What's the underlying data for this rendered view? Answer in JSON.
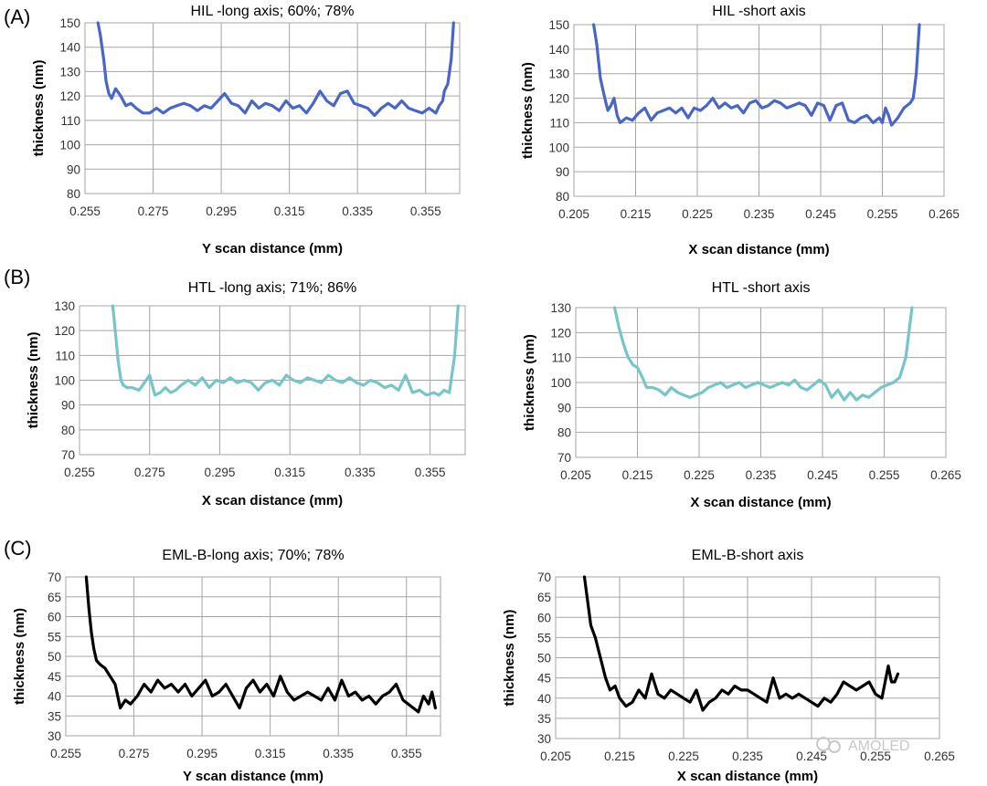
{
  "panel_labels": [
    "(A)",
    "(B)",
    "(C)"
  ],
  "watermark": "AMOLED",
  "chart_data": [
    {
      "type": "line",
      "panel": "(A)",
      "title": "HIL -long axis; 60%; 78%",
      "xlabel": "Y scan distance (mm)",
      "ylabel": "thickness (nm)",
      "xlim": [
        0.255,
        0.365
      ],
      "ylim": [
        80,
        150
      ],
      "xticks": [
        "0.255",
        "0.275",
        "0.295",
        "0.315",
        "0.335",
        "0.355"
      ],
      "yticks": [
        "80",
        "90",
        "100",
        "110",
        "120",
        "130",
        "140",
        "150"
      ],
      "color": "#4a66c4",
      "grid": true,
      "series": [
        {
          "name": "HIL long axis",
          "x": [
            0.2588,
            0.2595,
            0.2605,
            0.2612,
            0.262,
            0.2628,
            0.264,
            0.2655,
            0.267,
            0.2685,
            0.27,
            0.272,
            0.274,
            0.276,
            0.278,
            0.28,
            0.282,
            0.284,
            0.286,
            0.288,
            0.29,
            0.292,
            0.294,
            0.296,
            0.298,
            0.3,
            0.302,
            0.304,
            0.306,
            0.308,
            0.31,
            0.312,
            0.314,
            0.316,
            0.318,
            0.32,
            0.322,
            0.324,
            0.326,
            0.328,
            0.33,
            0.332,
            0.334,
            0.336,
            0.338,
            0.34,
            0.342,
            0.344,
            0.346,
            0.348,
            0.35,
            0.352,
            0.354,
            0.356,
            0.358,
            0.359,
            0.36,
            0.3605,
            0.3615,
            0.3625,
            0.3632
          ],
          "y": [
            150,
            145,
            135,
            126,
            121,
            119,
            123,
            120,
            116,
            117,
            115,
            113,
            113,
            115,
            113,
            115,
            116,
            117,
            116,
            114,
            116,
            115,
            118,
            121,
            117,
            116,
            113,
            118,
            115,
            117,
            116,
            114,
            118,
            115,
            116,
            113,
            117,
            122,
            118,
            116,
            121,
            122,
            117,
            116,
            115,
            112,
            115,
            117,
            115,
            118,
            115,
            114,
            113,
            115,
            113,
            116,
            118,
            122,
            125,
            135,
            150
          ]
        }
      ]
    },
    {
      "type": "line",
      "panel": "(A)",
      "title": "HIL -short axis",
      "xlabel": "X scan distance (mm)",
      "ylabel": "thickness (nm)",
      "xlim": [
        0.205,
        0.265
      ],
      "ylim": [
        80,
        150
      ],
      "xticks": [
        "0.205",
        "0.215",
        "0.225",
        "0.235",
        "0.245",
        "0.255",
        "0.265"
      ],
      "yticks": [
        "80",
        "90",
        "100",
        "110",
        "120",
        "130",
        "140",
        "150"
      ],
      "color": "#4a66c4",
      "grid": true,
      "series": [
        {
          "name": "HIL short axis",
          "x": [
            0.2082,
            0.2087,
            0.2093,
            0.21,
            0.2105,
            0.211,
            0.2115,
            0.212,
            0.2125,
            0.2135,
            0.2145,
            0.2155,
            0.2165,
            0.2175,
            0.2185,
            0.2195,
            0.2205,
            0.2215,
            0.2225,
            0.2235,
            0.2245,
            0.2255,
            0.2265,
            0.2275,
            0.2285,
            0.2295,
            0.2305,
            0.2315,
            0.2325,
            0.2335,
            0.2345,
            0.2355,
            0.2365,
            0.2375,
            0.2385,
            0.2395,
            0.2405,
            0.2415,
            0.2425,
            0.2435,
            0.2445,
            0.2455,
            0.2465,
            0.2475,
            0.2485,
            0.2495,
            0.2505,
            0.2515,
            0.2525,
            0.2535,
            0.2545,
            0.255,
            0.2555,
            0.256,
            0.2565,
            0.2575,
            0.2585,
            0.2595,
            0.26,
            0.2605,
            0.261
          ],
          "y": [
            150,
            142,
            128,
            120,
            115,
            117,
            120,
            113,
            110,
            112,
            111,
            114,
            116,
            111,
            114,
            115,
            116,
            114,
            116,
            112,
            116,
            115,
            117,
            120,
            116,
            118,
            116,
            117,
            114,
            118,
            119,
            116,
            117,
            119,
            118,
            116,
            117,
            118,
            117,
            113,
            118,
            117,
            111,
            117,
            118,
            111,
            110,
            112,
            113,
            110,
            112,
            110,
            116,
            113,
            109,
            112,
            116,
            118,
            120,
            130,
            150
          ]
        }
      ]
    },
    {
      "type": "line",
      "panel": "(B)",
      "title": "HTL -long axis; 71%; 86%",
      "xlabel": "X scan distance (mm)",
      "ylabel": "thickness (nm)",
      "xlim": [
        0.255,
        0.365
      ],
      "ylim": [
        70,
        130
      ],
      "xticks": [
        "0.255",
        "0.275",
        "0.295",
        "0.315",
        "0.335",
        "0.355"
      ],
      "yticks": [
        "70",
        "80",
        "90",
        "100",
        "110",
        "120",
        "130"
      ],
      "color": "#76c5c9",
      "grid": true,
      "series": [
        {
          "name": "HTL long axis",
          "x": [
            0.2645,
            0.2652,
            0.266,
            0.2668,
            0.2675,
            0.2685,
            0.27,
            0.272,
            0.2735,
            0.275,
            0.2765,
            0.278,
            0.2795,
            0.281,
            0.2825,
            0.284,
            0.286,
            0.288,
            0.29,
            0.292,
            0.294,
            0.296,
            0.298,
            0.3,
            0.302,
            0.304,
            0.306,
            0.308,
            0.31,
            0.312,
            0.314,
            0.316,
            0.318,
            0.32,
            0.322,
            0.324,
            0.326,
            0.328,
            0.33,
            0.332,
            0.334,
            0.336,
            0.338,
            0.34,
            0.342,
            0.344,
            0.346,
            0.348,
            0.35,
            0.352,
            0.354,
            0.356,
            0.3575,
            0.359,
            0.3605,
            0.362,
            0.363
          ],
          "y": [
            130,
            120,
            108,
            100,
            98,
            97,
            97,
            96,
            99,
            102,
            94,
            95,
            97,
            95,
            96,
            98,
            100,
            98,
            101,
            97,
            100,
            99,
            101,
            99,
            100,
            99,
            96,
            99,
            100,
            98,
            102,
            100,
            99,
            101,
            100,
            99,
            102,
            100,
            99,
            101,
            99,
            98,
            100,
            99,
            97,
            98,
            96,
            102,
            95,
            96,
            94,
            95,
            94,
            96,
            95,
            110,
            130
          ]
        }
      ]
    },
    {
      "type": "line",
      "panel": "(B)",
      "title": "HTL -short axis",
      "xlabel": "X scan distance (mm)",
      "ylabel": "thickness (nm)",
      "xlim": [
        0.205,
        0.265
      ],
      "ylim": [
        70,
        130
      ],
      "xticks": [
        "0.205",
        "0.215",
        "0.225",
        "0.235",
        "0.245",
        "0.255",
        "0.265"
      ],
      "yticks": [
        "70",
        "80",
        "90",
        "100",
        "110",
        "120",
        "130"
      ],
      "color": "#76c5c9",
      "grid": true,
      "series": [
        {
          "name": "HTL short axis",
          "x": [
            0.2113,
            0.212,
            0.2128,
            0.2135,
            0.2143,
            0.215,
            0.2158,
            0.2165,
            0.2175,
            0.2185,
            0.2195,
            0.2205,
            0.2215,
            0.2225,
            0.2235,
            0.2245,
            0.2255,
            0.2265,
            0.2275,
            0.2285,
            0.2295,
            0.2305,
            0.2315,
            0.2325,
            0.2335,
            0.2345,
            0.2355,
            0.2365,
            0.2375,
            0.2385,
            0.2395,
            0.2405,
            0.2415,
            0.2425,
            0.2435,
            0.2445,
            0.2455,
            0.2465,
            0.2475,
            0.2485,
            0.2495,
            0.2505,
            0.2515,
            0.2525,
            0.2535,
            0.2545,
            0.2555,
            0.2565,
            0.2575,
            0.2585,
            0.2595
          ],
          "y": [
            130,
            122,
            115,
            110,
            107,
            106,
            102,
            98,
            98,
            97,
            95,
            98,
            96,
            95,
            94,
            95,
            96,
            98,
            99,
            100,
            98,
            99,
            100,
            98,
            99,
            100,
            99,
            98,
            99,
            100,
            99,
            101,
            98,
            97,
            99,
            101,
            99,
            94,
            97,
            93,
            96,
            93,
            95,
            94,
            96,
            98,
            99,
            100,
            102,
            110,
            130
          ]
        }
      ]
    },
    {
      "type": "line",
      "panel": "(C)",
      "title": "EML-B-long axis; 70%; 78%",
      "xlabel": "Y scan distance (mm)",
      "ylabel": "thickness (nm)",
      "xlim": [
        0.255,
        0.365
      ],
      "ylim": [
        30,
        70
      ],
      "xticks": [
        "0.255",
        "0.275",
        "0.295",
        "0.315",
        "0.335",
        "0.355"
      ],
      "yticks": [
        "30",
        "35",
        "40",
        "45",
        "50",
        "55",
        "60",
        "65",
        "70"
      ],
      "color": "#000000",
      "grid": true,
      "series": [
        {
          "name": "EML-B long axis",
          "x": [
            0.261,
            0.2618,
            0.2625,
            0.2632,
            0.264,
            0.265,
            0.2665,
            0.268,
            0.2695,
            0.271,
            0.2725,
            0.274,
            0.276,
            0.278,
            0.28,
            0.282,
            0.284,
            0.286,
            0.288,
            0.29,
            0.292,
            0.294,
            0.296,
            0.298,
            0.3,
            0.302,
            0.304,
            0.306,
            0.308,
            0.31,
            0.312,
            0.314,
            0.316,
            0.318,
            0.32,
            0.322,
            0.324,
            0.326,
            0.328,
            0.33,
            0.332,
            0.334,
            0.336,
            0.338,
            0.34,
            0.342,
            0.344,
            0.346,
            0.348,
            0.35,
            0.352,
            0.354,
            0.3555,
            0.357,
            0.3585,
            0.36,
            0.3615,
            0.3625,
            0.3635
          ],
          "y": [
            70,
            62,
            56,
            52,
            49,
            48,
            47,
            45,
            43,
            37,
            39,
            38,
            40,
            43,
            41,
            44,
            42,
            43,
            41,
            43,
            40,
            42,
            44,
            40,
            41,
            43,
            40,
            37,
            42,
            44,
            41,
            43,
            40,
            45,
            41,
            39,
            40,
            41,
            40,
            39,
            42,
            39,
            44,
            40,
            41,
            39,
            40,
            38,
            40,
            41,
            43,
            39,
            38,
            37,
            36,
            40,
            38,
            41,
            37
          ]
        }
      ]
    },
    {
      "type": "line",
      "panel": "(C)",
      "title": "EML-B-short axis",
      "xlabel": "X scan distance (mm)",
      "ylabel": "thickness (nm)",
      "xlim": [
        0.205,
        0.265
      ],
      "ylim": [
        30,
        70
      ],
      "xticks": [
        "0.205",
        "0.215",
        "0.225",
        "0.235",
        "0.245",
        "0.255",
        "0.265"
      ],
      "yticks": [
        "30",
        "35",
        "40",
        "45",
        "50",
        "55",
        "60",
        "65",
        "70"
      ],
      "color": "#000000",
      "grid": true,
      "series": [
        {
          "name": "EML-B short axis",
          "x": [
            0.2095,
            0.21,
            0.2105,
            0.2112,
            0.212,
            0.2128,
            0.2135,
            0.2143,
            0.215,
            0.216,
            0.217,
            0.218,
            0.219,
            0.22,
            0.221,
            0.222,
            0.223,
            0.224,
            0.225,
            0.226,
            0.227,
            0.228,
            0.229,
            0.23,
            0.231,
            0.232,
            0.233,
            0.234,
            0.235,
            0.236,
            0.237,
            0.238,
            0.239,
            0.24,
            0.241,
            0.242,
            0.243,
            0.244,
            0.245,
            0.246,
            0.247,
            0.248,
            0.249,
            0.25,
            0.251,
            0.252,
            0.253,
            0.254,
            0.255,
            0.256,
            0.257,
            0.2575,
            0.258,
            0.2585
          ],
          "y": [
            70,
            64,
            58,
            55,
            50,
            45,
            42,
            43,
            40,
            38,
            39,
            42,
            40,
            46,
            41,
            40,
            42,
            41,
            40,
            39,
            42,
            37,
            39,
            40,
            42,
            41,
            43,
            42,
            42,
            41,
            40,
            39,
            45,
            40,
            41,
            40,
            41,
            40,
            39,
            38,
            40,
            39,
            41,
            44,
            43,
            42,
            43,
            44,
            41,
            40,
            48,
            44,
            44,
            46
          ]
        }
      ]
    }
  ]
}
